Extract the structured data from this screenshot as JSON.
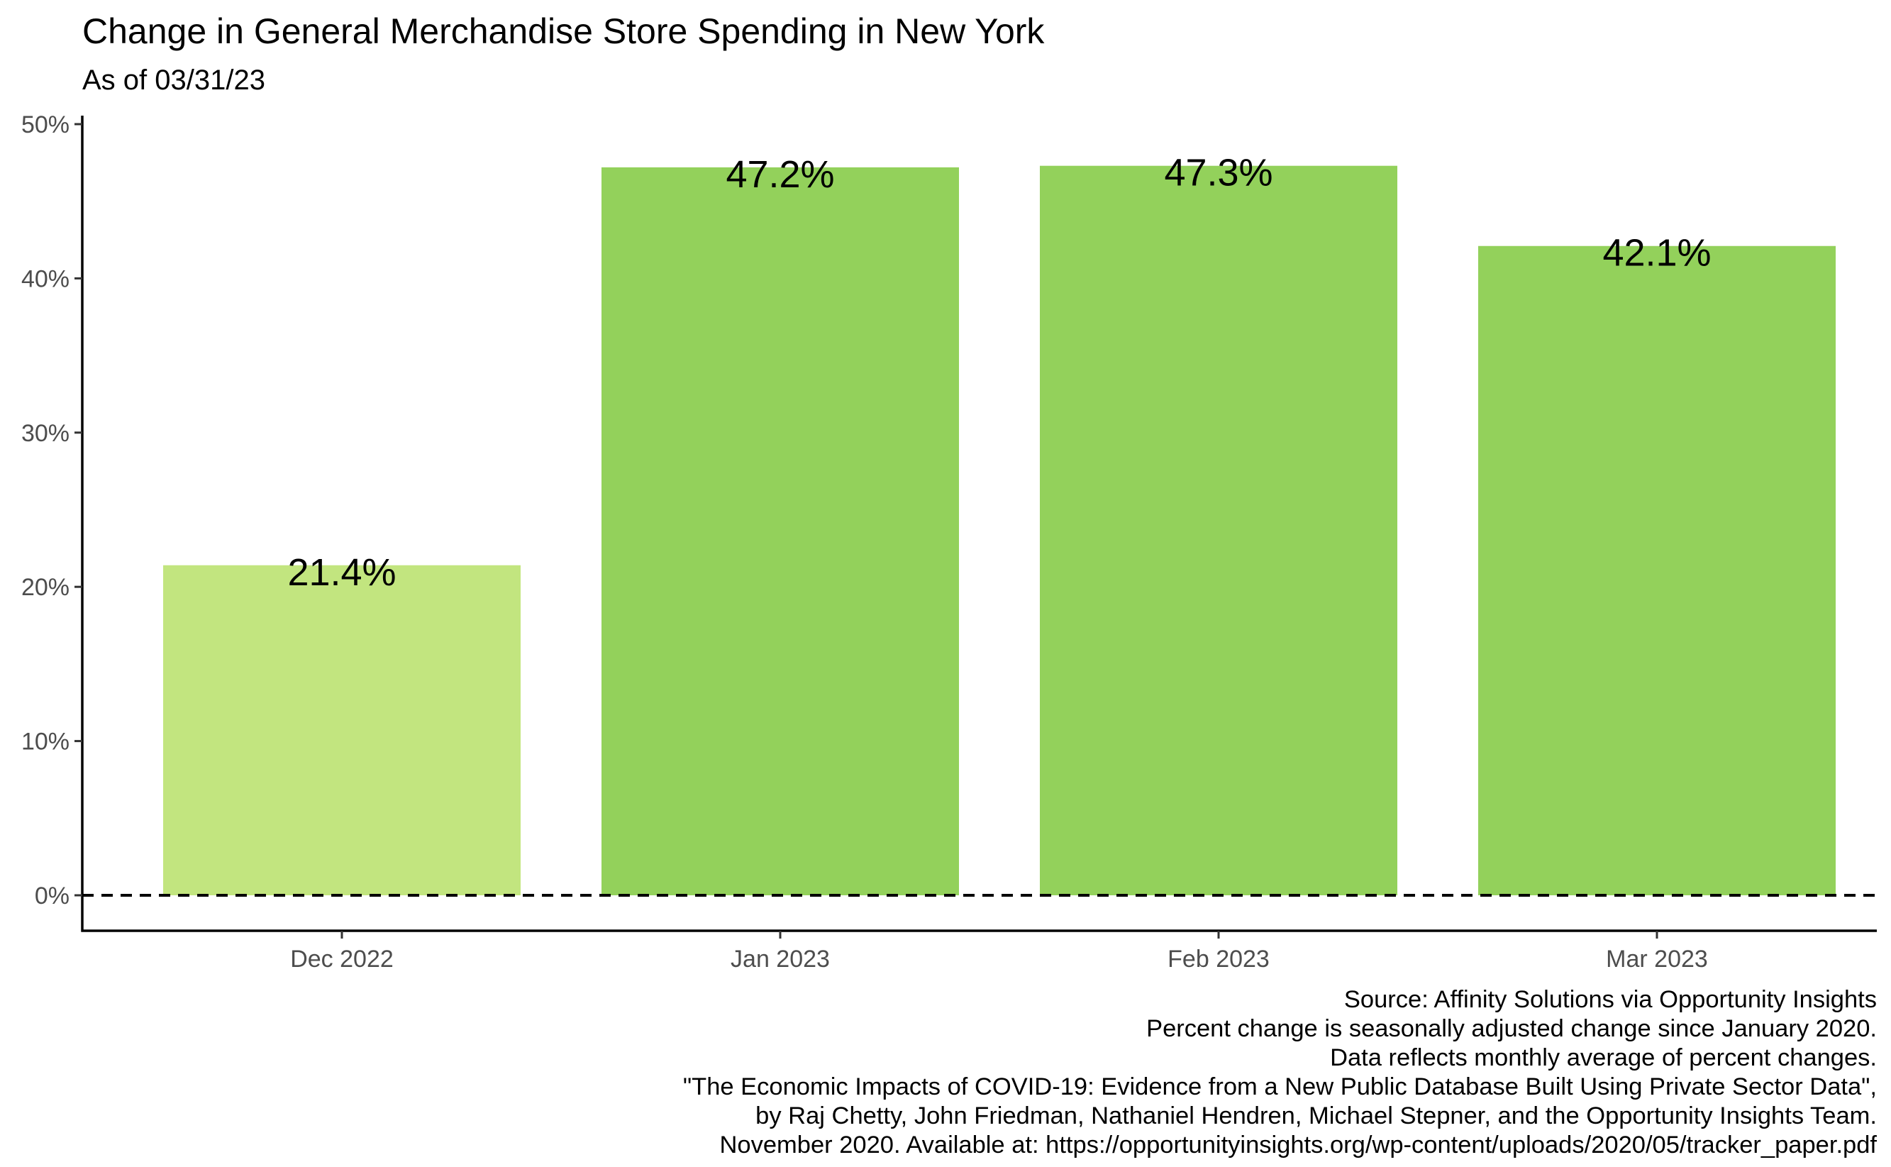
{
  "chart_data": {
    "type": "bar",
    "title": "Change in General Merchandise Store Spending in New York",
    "subtitle": "As of 03/31/23",
    "categories": [
      "Dec 2022",
      "Jan 2023",
      "Feb 2023",
      "Mar 2023"
    ],
    "values": [
      21.4,
      47.2,
      47.3,
      42.1
    ],
    "value_labels": [
      "21.4%",
      "47.2%",
      "47.3%",
      "42.1%"
    ],
    "bar_colors": [
      "#c2e57f",
      "#93d15b",
      "#93d15b",
      "#93d15b"
    ],
    "ylim": [
      -2.3,
      50
    ],
    "yticks": [
      0,
      10,
      20,
      30,
      40,
      50
    ],
    "ytick_labels": [
      "0%",
      "10%",
      "20%",
      "30%",
      "40%",
      "50%"
    ],
    "xlabel": "",
    "ylabel": "",
    "reference_line": {
      "value": 0,
      "style": "dashed",
      "color": "#000000"
    },
    "grid": false,
    "legend": "none"
  },
  "caption": {
    "lines": [
      "Source: Affinity Solutions via Opportunity Insights",
      "Percent change is seasonally adjusted change since January 2020.",
      "Data reflects monthly average of percent changes.",
      "\"The Economic Impacts of COVID-19: Evidence from a New Public Database Built Using Private Sector Data\",",
      "by Raj Chetty, John Friedman, Nathaniel Hendren, Michael Stepner, and the Opportunity Insights Team.",
      "November 2020. Available at: https://opportunityinsights.org/wp-content/uploads/2020/05/tracker_paper.pdf"
    ]
  }
}
